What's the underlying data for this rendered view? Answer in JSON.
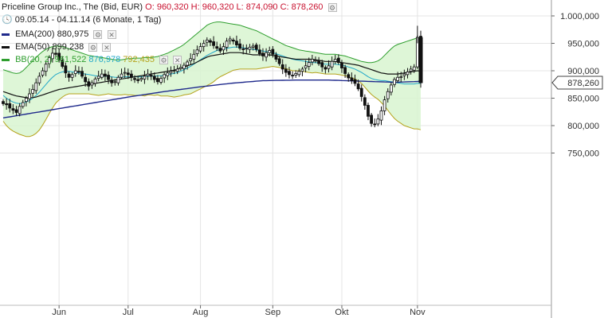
{
  "legend": {
    "instrument": "Priceline Group Inc., The (Bid, EUR)",
    "ohlc": {
      "open": "O: 960,320",
      "high": "H: 960,320",
      "low": "L: 874,090",
      "close": "C: 878,260"
    },
    "range": "09.05.14 - 04.11.14 (6 Monate, 1 Tag)",
    "ema200": {
      "label": "EMA(200)",
      "value": "880,975",
      "color": "#1f2a8c"
    },
    "ema50": {
      "label": "EMA(50)",
      "value": "899,238",
      "color": "#111111"
    },
    "bb": {
      "label": "BB(20, 2)",
      "v1": "961,522",
      "v2": "876,978",
      "v3": "792,435",
      "color1": "#2e9e2e",
      "color2": "#22a8c8",
      "color3": "#b5a21a"
    },
    "icons": {
      "clock": "clock-icon",
      "settings": "gear-icon",
      "close": "close-icon"
    }
  },
  "chart_data": {
    "type": "candlestick",
    "xlabel": "",
    "ylabel": "",
    "ylim": [
      750,
      1010
    ],
    "y_ticks": [
      "1.000,000",
      "950,000",
      "900,000",
      "850,000",
      "800,000",
      "750,000"
    ],
    "y_tick_values": [
      1000,
      950,
      900,
      850,
      800,
      750
    ],
    "x_ticks": [
      {
        "label": "Jun",
        "day": 17
      },
      {
        "label": "Jul",
        "day": 38
      },
      {
        "label": "Aug",
        "day": 60
      },
      {
        "label": "Sep",
        "day": 82
      },
      {
        "label": "Okt",
        "day": 103
      },
      {
        "label": "Nov",
        "day": 126
      }
    ],
    "last_price": "878,260",
    "last_price_value": 878.26,
    "close": [
      840,
      838,
      832,
      828,
      824,
      835,
      842,
      850,
      858,
      866,
      878,
      890,
      900,
      912,
      924,
      932,
      930,
      920,
      908,
      896,
      888,
      893,
      900,
      898,
      890,
      880,
      872,
      878,
      885,
      890,
      894,
      890,
      884,
      878,
      880,
      888,
      894,
      897,
      893,
      888,
      884,
      882,
      886,
      890,
      894,
      890,
      884,
      880,
      886,
      893,
      896,
      899,
      900,
      903,
      906,
      910,
      916,
      922,
      930,
      938,
      944,
      950,
      956,
      952,
      946,
      941,
      936,
      944,
      954,
      958,
      954,
      947,
      941,
      939,
      941,
      943,
      945,
      939,
      931,
      927,
      933,
      937,
      930,
      921,
      913,
      903,
      897,
      893,
      891,
      895,
      899,
      903,
      909,
      915,
      921,
      919,
      913,
      907,
      903,
      909,
      917,
      921,
      915,
      905,
      895,
      887,
      882,
      877,
      867,
      853,
      837,
      817,
      804,
      802,
      812,
      827,
      847,
      862,
      874,
      884,
      888,
      889,
      894,
      898,
      903,
      907,
      961,
      878.26
    ],
    "ema200": [
      814,
      815,
      816,
      817,
      818,
      819,
      820,
      821,
      822,
      823,
      824,
      825,
      826,
      827,
      828,
      829,
      830,
      831,
      832,
      833,
      834,
      835,
      836,
      837,
      838,
      839,
      840,
      841,
      842,
      843,
      844,
      845,
      846,
      847,
      848,
      849,
      850,
      851,
      852,
      853,
      853.9,
      854.8,
      855.7,
      856.6,
      857.5,
      858.4,
      859.3,
      860.2,
      861.1,
      862,
      862.8,
      863.6,
      864.4,
      865.2,
      866,
      866.8,
      867.6,
      868.4,
      869.2,
      870,
      870.7,
      871.4,
      872.1,
      872.8,
      873.5,
      874.2,
      874.9,
      875.6,
      876.3,
      877,
      877.5,
      878,
      878.5,
      879,
      879.5,
      880,
      880.5,
      881,
      881.5,
      882,
      882.1,
      882.2,
      882.3,
      882.4,
      882.5,
      882.6,
      882.7,
      882.8,
      882.9,
      883,
      883,
      883,
      883,
      883,
      883,
      883,
      883,
      883,
      883,
      883,
      882.8,
      882.6,
      882.4,
      882.2,
      882,
      881.8,
      881.6,
      881.4,
      881.2,
      881,
      880.8,
      880.6,
      880.4,
      880.2,
      880,
      879.8,
      879.6,
      879.4,
      879.2,
      879,
      879.2,
      879.4,
      879.6,
      879.8,
      880,
      880.2,
      880.4,
      880.97
    ],
    "ema50": [
      862,
      860,
      858,
      856,
      854,
      853,
      852,
      851,
      851,
      851,
      852,
      854,
      856,
      858,
      860,
      862,
      864,
      866,
      867,
      868,
      869,
      870,
      871,
      872,
      873,
      874,
      875,
      876,
      877,
      878,
      879,
      880,
      881,
      882,
      883,
      884,
      885,
      886,
      887,
      888,
      889,
      890,
      891,
      892,
      893,
      894,
      895,
      896,
      897,
      898,
      899,
      900,
      901,
      903,
      905,
      907,
      909,
      911,
      913,
      916,
      919,
      922,
      925,
      927,
      928,
      929,
      930,
      931,
      932,
      933,
      933,
      933,
      933,
      932,
      931,
      930,
      929,
      929,
      929,
      929,
      929,
      929,
      928,
      927,
      926,
      925,
      924,
      923,
      922,
      921,
      921,
      921,
      921,
      921,
      921,
      920,
      919,
      918,
      917,
      917,
      917,
      917,
      916,
      915,
      914,
      913,
      912,
      911,
      910,
      908,
      906,
      904,
      902,
      900,
      898,
      896,
      895,
      894,
      894,
      894,
      894,
      895,
      896,
      897,
      898,
      899,
      900,
      899.2
    ],
    "bb_mid": [
      855,
      850,
      846,
      843,
      841,
      840,
      841,
      843,
      846,
      850,
      855,
      861,
      868,
      875,
      882,
      888,
      893,
      896,
      898,
      899,
      899,
      898,
      897,
      896,
      895,
      894,
      893,
      892,
      891,
      890,
      890,
      890,
      890,
      889,
      888,
      888,
      888,
      889,
      889,
      889,
      889,
      889,
      889,
      889,
      890,
      890,
      890,
      891,
      891,
      892,
      893,
      894,
      895,
      897,
      899,
      902,
      905,
      908,
      912,
      916,
      920,
      924,
      928,
      931,
      934,
      937,
      939,
      940,
      941,
      942,
      943,
      943,
      943,
      942,
      941,
      940,
      939,
      938,
      937,
      936,
      935,
      934,
      933,
      931,
      929,
      927,
      925,
      923,
      921,
      920,
      919,
      918,
      917,
      916,
      915,
      915,
      914,
      913,
      912,
      912,
      912,
      912,
      911,
      910,
      909,
      907,
      905,
      903,
      900,
      897,
      893,
      889,
      886,
      884,
      883,
      882,
      882,
      881,
      880,
      879,
      878,
      877,
      876,
      876,
      876,
      876,
      877,
      876.98
    ],
    "bb_upper": [
      902,
      900,
      898,
      896,
      895,
      896,
      900,
      906,
      912,
      918,
      924,
      930,
      935,
      939,
      942,
      944,
      945,
      945,
      944,
      942,
      940,
      938,
      936,
      934,
      932,
      930,
      928,
      927,
      926,
      925,
      924,
      923,
      922,
      921,
      920,
      920,
      920,
      921,
      922,
      922,
      923,
      923,
      923,
      924,
      924,
      924,
      925,
      926,
      928,
      930,
      932,
      935,
      938,
      941,
      944,
      948,
      953,
      958,
      963,
      968,
      973,
      978,
      983,
      986,
      988,
      989,
      989,
      988,
      987,
      986,
      985,
      984,
      983,
      981,
      979,
      977,
      975,
      973,
      970,
      967,
      964,
      961,
      958,
      955,
      952,
      949,
      946,
      944,
      942,
      940,
      938,
      937,
      936,
      935,
      934,
      933,
      932,
      931,
      930,
      930,
      930,
      930,
      929,
      928,
      927,
      925,
      923,
      921,
      919,
      917,
      916,
      915,
      915,
      916,
      918,
      922,
      928,
      934,
      940,
      945,
      948,
      950,
      952,
      954,
      956,
      958,
      960,
      961.52
    ],
    "bb_lower": [
      808,
      800,
      794,
      790,
      787,
      784,
      782,
      780,
      780,
      782,
      786,
      792,
      801,
      811,
      822,
      832,
      841,
      847,
      852,
      856,
      858,
      858,
      858,
      858,
      858,
      858,
      858,
      857,
      856,
      855,
      856,
      857,
      858,
      857,
      856,
      856,
      856,
      857,
      856,
      856,
      855,
      855,
      855,
      854,
      856,
      856,
      855,
      856,
      854,
      854,
      854,
      853,
      852,
      853,
      854,
      856,
      857,
      858,
      861,
      864,
      867,
      870,
      873,
      876,
      880,
      885,
      889,
      892,
      895,
      898,
      901,
      902,
      903,
      903,
      903,
      903,
      903,
      903,
      904,
      905,
      906,
      907,
      908,
      907,
      906,
      905,
      904,
      902,
      900,
      900,
      900,
      899,
      898,
      897,
      896,
      897,
      896,
      895,
      894,
      894,
      894,
      894,
      893,
      892,
      891,
      889,
      887,
      885,
      881,
      877,
      870,
      863,
      857,
      852,
      848,
      842,
      836,
      828,
      820,
      813,
      808,
      804,
      800,
      798,
      796,
      794,
      794,
      792.44
    ]
  }
}
